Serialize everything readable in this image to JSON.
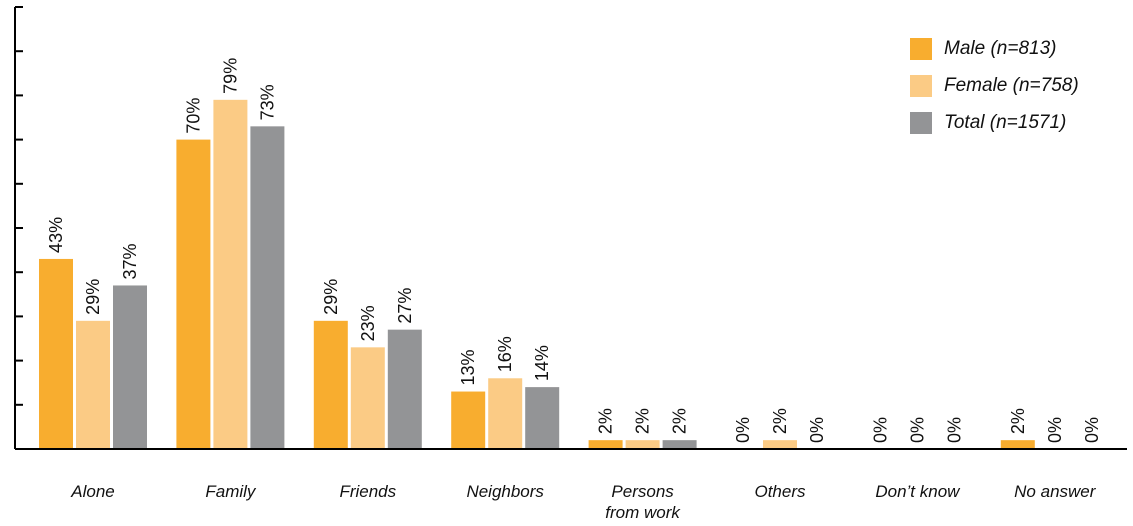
{
  "chart_data": {
    "type": "bar",
    "categories": [
      "Alone",
      "Family",
      "Friends",
      "Neighbors",
      "Persons\nfrom work",
      "Others",
      "Don’t know",
      "No answer"
    ],
    "series": [
      {
        "name": "Male (n=813)",
        "values": [
          43,
          70,
          29,
          13,
          2,
          0,
          0,
          2
        ],
        "labels": [
          "43%",
          "70%",
          "29%",
          "13%",
          "2%",
          "0%",
          "0%",
          "2%"
        ]
      },
      {
        "name": "Female (n=758)",
        "values": [
          29,
          79,
          23,
          16,
          2,
          2,
          0,
          0
        ],
        "labels": [
          "29%",
          "79%",
          "23%",
          "16%",
          "2%",
          "2%",
          "0%",
          "0%"
        ]
      },
      {
        "name": "Total (n=1571)",
        "values": [
          37,
          73,
          27,
          14,
          2,
          0,
          0,
          0
        ],
        "labels": [
          "37%",
          "73%",
          "27%",
          "14%",
          "2%",
          "0%",
          "0%",
          "0%"
        ]
      }
    ],
    "ylim": [
      0,
      100
    ],
    "y_ticks": [
      0,
      10,
      20,
      30,
      40,
      50,
      60,
      70,
      80,
      90,
      100
    ],
    "y_tick_labels": "none",
    "grid": false,
    "legend_position": "top-right",
    "colors": [
      "#F8AD2F",
      "#FBCB85",
      "#939496"
    ]
  }
}
